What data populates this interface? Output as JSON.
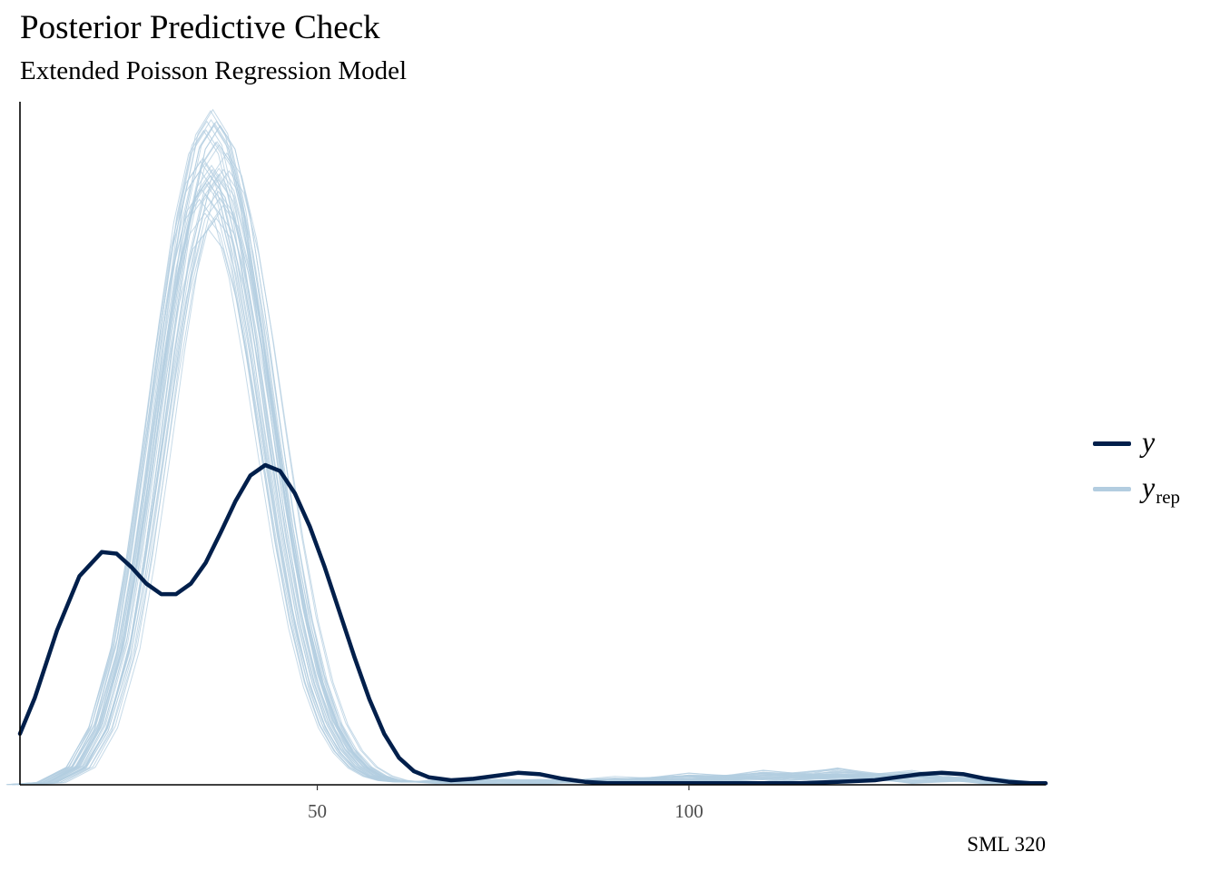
{
  "title": "Posterior Predictive Check",
  "subtitle": "Extended Poisson Regression Model",
  "caption": "SML 320",
  "legend": {
    "position": "right",
    "items": [
      {
        "symbol": "y",
        "sub": "",
        "color": "#011f4b"
      },
      {
        "symbol": "y",
        "sub": "rep",
        "color": "#b3cde0"
      }
    ]
  },
  "chart_data": {
    "type": "line",
    "chart_kind": "density overlay (posterior predictive check)",
    "xlim": [
      10,
      148
    ],
    "ylim": [
      0,
      0.0455
    ],
    "x_ticks": [
      50,
      100
    ],
    "grid": false,
    "y_axis_ticks_shown": false,
    "observed": {
      "name": "y",
      "color": "#011f4b",
      "x": [
        10,
        12,
        15,
        18,
        21,
        23,
        25,
        27,
        29,
        31,
        33,
        35,
        37,
        39,
        41,
        43,
        45,
        47,
        49,
        51,
        53,
        55,
        57,
        59,
        61,
        63,
        65,
        68,
        71,
        74,
        77,
        80,
        83,
        86,
        89,
        92,
        95,
        100,
        105,
        110,
        115,
        120,
        125,
        128,
        131,
        134,
        137,
        140,
        143,
        146,
        148
      ],
      "y": [
        0.0034,
        0.0058,
        0.0103,
        0.0139,
        0.0155,
        0.0154,
        0.0145,
        0.0134,
        0.0127,
        0.0127,
        0.0134,
        0.0148,
        0.0168,
        0.0189,
        0.0206,
        0.0213,
        0.0209,
        0.0194,
        0.0172,
        0.0145,
        0.0115,
        0.0085,
        0.0057,
        0.0034,
        0.0018,
        0.0009,
        0.0005,
        0.0003,
        0.0004,
        0.0006,
        0.0008,
        0.0007,
        0.0004,
        0.0002,
        0.0001,
        0.0001,
        0.0001,
        0.0001,
        0.0001,
        0.0001,
        0.0001,
        0.0002,
        0.0003,
        0.0005,
        0.0007,
        0.0008,
        0.0007,
        0.0004,
        0.0002,
        0.0001,
        0.0001
      ]
    },
    "replicated": {
      "name": "y_rep",
      "color": "#b3cde0",
      "draws": 40,
      "mean_x": [
        10,
        14,
        18,
        21,
        24,
        26,
        28,
        30,
        32,
        34,
        36,
        38,
        40,
        42,
        44,
        46,
        48,
        50,
        52,
        54,
        56,
        58,
        60,
        62,
        64,
        67,
        70,
        75,
        80,
        90,
        100,
        110,
        120,
        130,
        140,
        148
      ],
      "mean_y": [
        1e-05,
        0.00015,
        0.0012,
        0.0039,
        0.0093,
        0.0152,
        0.0222,
        0.0296,
        0.0361,
        0.0405,
        0.042,
        0.0405,
        0.0363,
        0.0302,
        0.0233,
        0.0167,
        0.0112,
        0.007,
        0.0041,
        0.0023,
        0.0012,
        0.0006,
        0.0003,
        0.0002,
        0.0002,
        0.0002,
        0.0002,
        0.0002,
        0.0002,
        0.0003,
        0.0004,
        0.0005,
        0.0006,
        0.0005,
        0.0003,
        0.0001
      ],
      "peak_range": [
        0.036,
        0.045
      ]
    }
  }
}
